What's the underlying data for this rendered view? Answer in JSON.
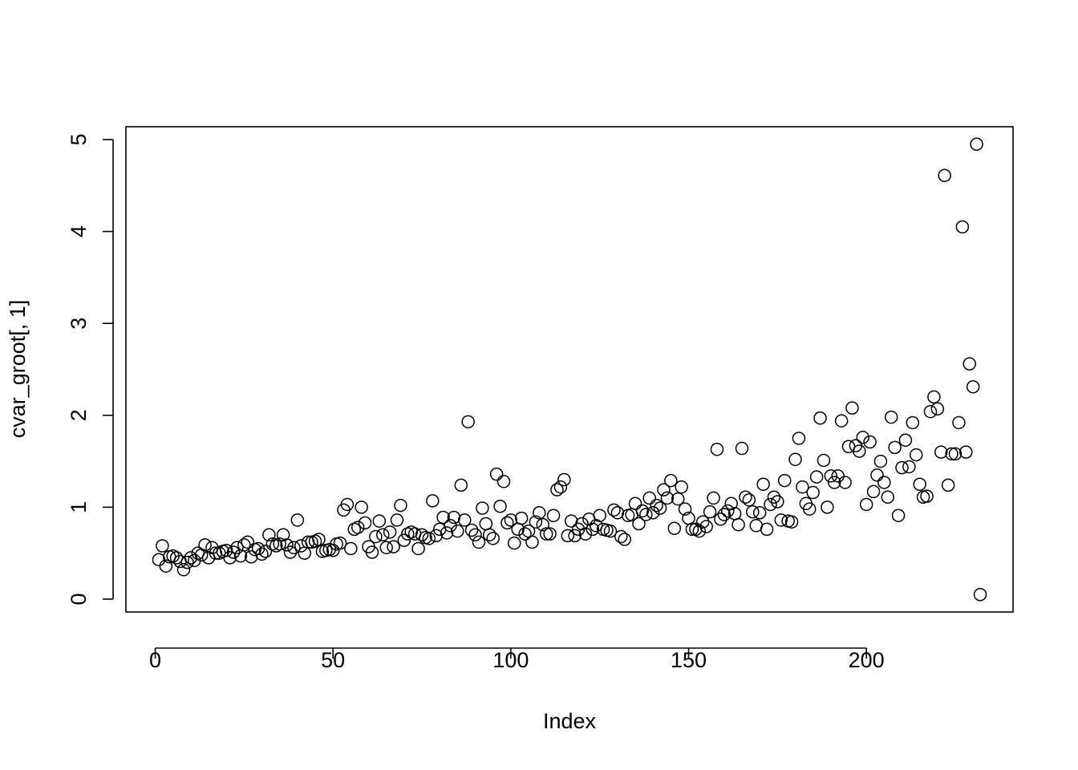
{
  "chart_data": {
    "type": "scatter",
    "xlabel": "Index",
    "ylabel": "cvar_groot[, 1]",
    "x": [
      1,
      2,
      3,
      4,
      5,
      6,
      7,
      8,
      9,
      10,
      11,
      12,
      13,
      14,
      15,
      16,
      17,
      18,
      19,
      20,
      21,
      22,
      23,
      24,
      25,
      26,
      27,
      28,
      29,
      30,
      31,
      32,
      33,
      34,
      35,
      36,
      37,
      38,
      39,
      40,
      41,
      42,
      43,
      44,
      45,
      46,
      47,
      48,
      49,
      50,
      51,
      52,
      53,
      54,
      55,
      56,
      57,
      58,
      59,
      60,
      61,
      62,
      63,
      64,
      65,
      66,
      67,
      68,
      69,
      70,
      71,
      72,
      73,
      74,
      75,
      76,
      77,
      78,
      79,
      80,
      81,
      82,
      83,
      84,
      85,
      86,
      87,
      88,
      89,
      90,
      91,
      92,
      93,
      94,
      95,
      96,
      97,
      98,
      99,
      100,
      101,
      102,
      103,
      104,
      105,
      106,
      107,
      108,
      109,
      110,
      111,
      112,
      113,
      114,
      115,
      116,
      117,
      118,
      119,
      120,
      121,
      122,
      123,
      124,
      125,
      126,
      127,
      128,
      129,
      130,
      131,
      132,
      133,
      134,
      135,
      136,
      137,
      138,
      139,
      140,
      141,
      142,
      143,
      144,
      145,
      146,
      147,
      148,
      149,
      150,
      151,
      152,
      153,
      154,
      155,
      156,
      157,
      158,
      159,
      160,
      161,
      162,
      163,
      164,
      165,
      166,
      167,
      168,
      169,
      170,
      171,
      172,
      173,
      174,
      175,
      176,
      177,
      178,
      179,
      180,
      181,
      182,
      183,
      184,
      185,
      186,
      187,
      188,
      189,
      190,
      191,
      192,
      193,
      194,
      195,
      196,
      197,
      198,
      199,
      200,
      201,
      202,
      203,
      204,
      205,
      206,
      207,
      208,
      209,
      210,
      211,
      212,
      213,
      214,
      215,
      216,
      217,
      218,
      219,
      220,
      221,
      222,
      223,
      224,
      225,
      226,
      227,
      228,
      229,
      230,
      231,
      232
    ],
    "values": [
      0.43,
      0.58,
      0.36,
      0.46,
      0.47,
      0.45,
      0.41,
      0.32,
      0.4,
      0.45,
      0.42,
      0.5,
      0.48,
      0.59,
      0.45,
      0.56,
      0.5,
      0.5,
      0.52,
      0.53,
      0.45,
      0.51,
      0.56,
      0.47,
      0.59,
      0.62,
      0.46,
      0.54,
      0.55,
      0.49,
      0.52,
      0.7,
      0.6,
      0.58,
      0.6,
      0.7,
      0.59,
      0.51,
      0.56,
      0.86,
      0.58,
      0.5,
      0.62,
      0.62,
      0.63,
      0.65,
      0.52,
      0.53,
      0.54,
      0.53,
      0.6,
      0.61,
      0.97,
      1.03,
      0.55,
      0.76,
      0.78,
      1.0,
      0.83,
      0.57,
      0.51,
      0.68,
      0.85,
      0.7,
      0.56,
      0.73,
      0.57,
      0.86,
      1.02,
      0.64,
      0.71,
      0.73,
      0.71,
      0.55,
      0.7,
      0.67,
      0.66,
      1.07,
      0.69,
      0.76,
      0.89,
      0.72,
      0.8,
      0.89,
      0.74,
      1.24,
      0.86,
      1.93,
      0.75,
      0.7,
      0.62,
      0.99,
      0.82,
      0.7,
      0.66,
      1.36,
      1.01,
      1.28,
      0.83,
      0.86,
      0.61,
      0.76,
      0.88,
      0.71,
      0.74,
      0.62,
      0.84,
      0.94,
      0.81,
      0.71,
      0.71,
      0.91,
      1.19,
      1.22,
      1.3,
      0.69,
      0.85,
      0.69,
      0.76,
      0.82,
      0.71,
      0.87,
      0.76,
      0.8,
      0.91,
      0.76,
      0.75,
      0.74,
      0.97,
      0.94,
      0.68,
      0.65,
      0.91,
      0.92,
      1.04,
      0.82,
      0.96,
      0.92,
      1.1,
      0.94,
      1.02,
      0.99,
      1.19,
      1.1,
      1.29,
      0.77,
      1.09,
      1.22,
      0.98,
      0.88,
      0.76,
      0.76,
      0.74,
      0.84,
      0.79,
      0.95,
      1.1,
      1.63,
      0.87,
      0.92,
      0.96,
      1.04,
      0.93,
      0.81,
      1.64,
      1.11,
      1.08,
      0.95,
      0.8,
      0.94,
      1.25,
      0.76,
      1.03,
      1.11,
      1.06,
      0.86,
      1.29,
      0.85,
      0.84,
      1.52,
      1.75,
      1.22,
      1.04,
      0.98,
      1.16,
      1.33,
      1.97,
      1.51,
      1.0,
      1.34,
      1.27,
      1.34,
      1.94,
      1.27,
      1.66,
      2.08,
      1.67,
      1.61,
      1.76,
      1.03,
      1.71,
      1.17,
      1.35,
      1.5,
      1.27,
      1.11,
      1.98,
      1.65,
      0.91,
      1.43,
      1.73,
      1.44,
      1.92,
      1.57,
      1.25,
      1.11,
      1.12,
      2.04,
      2.2,
      2.07,
      1.6,
      4.61,
      1.24,
      1.58,
      1.58,
      1.92,
      4.05,
      1.6,
      2.56,
      2.31,
      4.95,
      0.05
    ],
    "xlim": [
      -8.24,
      241.24
    ],
    "ylim": [
      -0.14,
      5.14
    ],
    "xticks": [
      0,
      50,
      100,
      150,
      200
    ],
    "yticks": [
      0,
      1,
      2,
      3,
      4,
      5
    ]
  }
}
